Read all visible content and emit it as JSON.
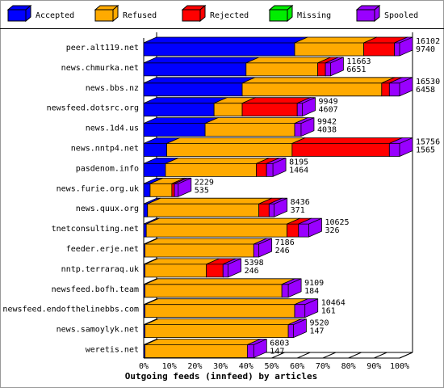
{
  "chart_data": {
    "type": "bar3d_stacked_horizontal",
    "xlabel": "Outgoing feeds (innfeed) by articles",
    "categories": [
      "peer.alt119.net",
      "news.chmurka.net",
      "news.bbs.nz",
      "newsfeed.dotsrc.org",
      "news.1d4.us",
      "news.nntp4.net",
      "pasdenom.info",
      "news.furie.org.uk",
      "news.quux.org",
      "tnetconsulting.net",
      "feeder.erje.net",
      "nntp.terraraq.uk",
      "newsfeed.bofh.team",
      "newsfeed.endofthelinebbs.com",
      "news.samoylyk.net",
      "weretis.net"
    ],
    "series": [
      {
        "name": "Accepted",
        "color": "#0000ff",
        "values": [
          59,
          40,
          38.5,
          27.5,
          24,
          9,
          8.5,
          2.5,
          1.5,
          1,
          0.5,
          0.5,
          0.5,
          0.5,
          0.5,
          0.5
        ]
      },
      {
        "name": "Refused",
        "color": "#ffaa00",
        "values": [
          27,
          28,
          54.5,
          11,
          35,
          49,
          35.5,
          8.5,
          43.5,
          55,
          42.5,
          24,
          53.5,
          58.5,
          56,
          40
        ]
      },
      {
        "name": "Rejected",
        "color": "#ff0000",
        "values": [
          12,
          3,
          3,
          21.5,
          0,
          38,
          4,
          1,
          4,
          4.5,
          0,
          6.5,
          0,
          0,
          0,
          0
        ]
      },
      {
        "name": "Missing",
        "color": "#00ee00",
        "values": [
          0,
          0,
          0,
          0,
          0,
          0,
          0,
          0,
          0,
          0,
          0,
          0,
          0,
          0,
          0,
          0
        ]
      },
      {
        "name": "Spooled",
        "color": "#9900ff",
        "values": [
          2,
          2,
          4,
          2,
          2.5,
          4,
          2.5,
          1.5,
          2,
          4,
          2,
          2,
          2.5,
          4,
          2,
          2.5
        ]
      }
    ],
    "counts_upper": [
      16102,
      11663,
      16530,
      9949,
      9942,
      15756,
      8195,
      2229,
      8436,
      10625,
      7186,
      5398,
      9109,
      10464,
      9520,
      6803
    ],
    "counts_lower": [
      9740,
      6651,
      6458,
      4607,
      4038,
      1565,
      1464,
      535,
      371,
      326,
      246,
      246,
      184,
      161,
      147,
      147
    ],
    "xlim": [
      0,
      100
    ],
    "xticks": [
      {
        "value": 0,
        "label": "0%"
      },
      {
        "value": 10,
        "label": "10%"
      },
      {
        "value": 20,
        "label": "20%"
      },
      {
        "value": 30,
        "label": "30%"
      },
      {
        "value": 40,
        "label": "40%"
      },
      {
        "value": 50,
        "label": "50%"
      },
      {
        "value": 60,
        "label": "60%"
      },
      {
        "value": 70,
        "label": "70%"
      },
      {
        "value": 80,
        "label": "80%"
      },
      {
        "value": 90,
        "label": "90%"
      },
      {
        "value": 100,
        "label": "100%"
      }
    ]
  }
}
